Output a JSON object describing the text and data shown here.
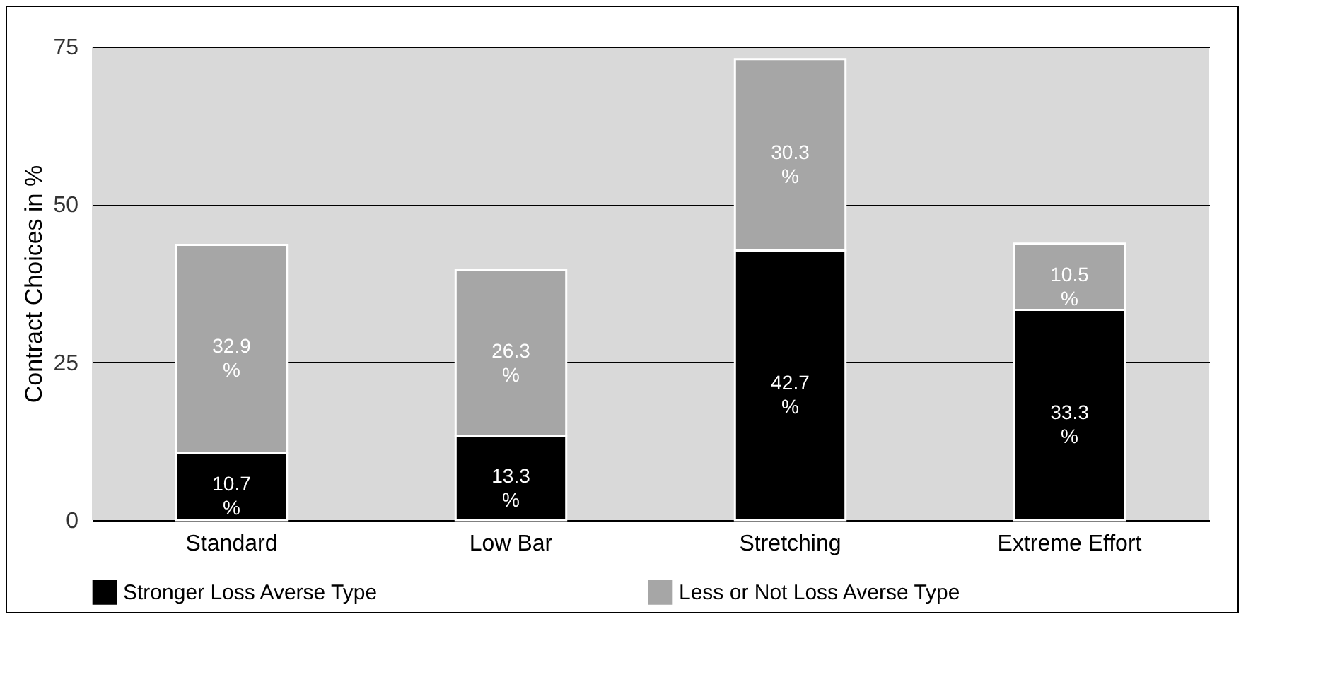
{
  "chart_data": {
    "type": "bar",
    "stacked": true,
    "ylabel": "Contract Choices in %",
    "categories": [
      "Standard",
      "Low Bar",
      "Stretching",
      "Extreme Effort"
    ],
    "series": [
      {
        "name": "Stronger Loss Averse Type",
        "color": "#000000",
        "values": [
          10.7,
          13.3,
          42.7,
          33.3
        ],
        "value_labels": [
          "10.7 %",
          "13.3 %",
          "42.7 %",
          "33.3 %"
        ]
      },
      {
        "name": "Less or Not Loss Averse Type",
        "color": "#a6a6a6",
        "values": [
          32.9,
          26.3,
          30.3,
          10.5
        ],
        "value_labels": [
          "32.9 %",
          "26.3 %",
          "30.3 %",
          "10.5 %"
        ]
      }
    ],
    "ylim": [
      0,
      75
    ],
    "yticks": [
      0,
      25,
      50,
      75
    ],
    "grid": "y",
    "legend": "bottom"
  }
}
